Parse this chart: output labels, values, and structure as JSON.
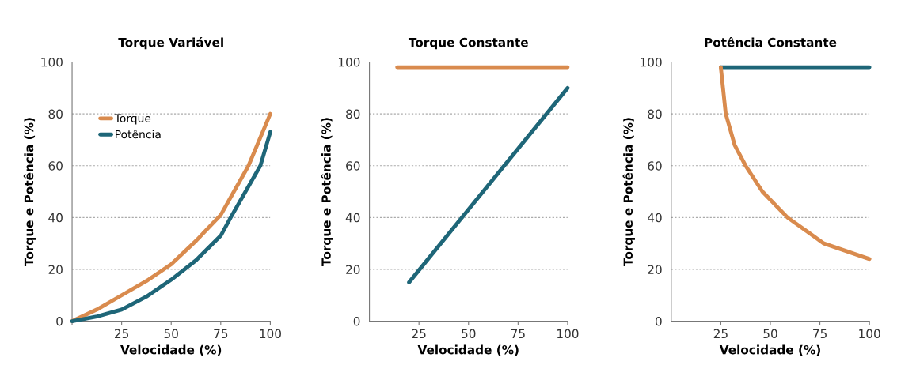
{
  "chart_data": [
    {
      "type": "line",
      "title": "Torque Variável",
      "xlabel": "Velocidade (%)",
      "ylabel": "Torque e Potência (%)",
      "xlim": [
        0,
        100
      ],
      "ylim": [
        0,
        100
      ],
      "xticks": [
        {
          "value": 0,
          "label": null
        },
        25,
        50,
        75,
        100
      ],
      "yticks": [
        0,
        20,
        40,
        60,
        80,
        100
      ],
      "grid": "y",
      "legend": "top left",
      "series": [
        {
          "name": "Torque",
          "color": "#d98b4e",
          "x": [
            0,
            12.5,
            25,
            37.5,
            50,
            62.5,
            75,
            89,
            100
          ],
          "values": [
            0,
            4.5,
            10,
            15.5,
            22,
            31,
            41,
            60,
            80
          ]
        },
        {
          "name": "Potência",
          "color": "#1e6678",
          "x": [
            0,
            12.5,
            25,
            37.5,
            50,
            62.5,
            75,
            80,
            87.5,
            95,
            100
          ],
          "values": [
            0,
            1.8,
            4.5,
            9.5,
            16,
            23.5,
            33,
            40,
            50,
            60,
            73
          ]
        }
      ]
    },
    {
      "type": "line",
      "title": "Torque Constante",
      "xlabel": "Velocidade (%)",
      "ylabel": "Torque e Potência (%)",
      "xlim": [
        0,
        100
      ],
      "ylim": [
        0,
        100
      ],
      "xticks": [
        25,
        50,
        75,
        100
      ],
      "yticks": [
        0,
        20,
        40,
        60,
        80,
        100
      ],
      "grid": "y",
      "series": [
        {
          "color": "#d98b4e",
          "x": [
            14,
            100
          ],
          "values": [
            98,
            98
          ]
        },
        {
          "color": "#1e6678",
          "x": [
            20,
            100
          ],
          "values": [
            15,
            90
          ]
        }
      ]
    },
    {
      "type": "line",
      "title": "Potência Constante",
      "xlabel": "Velocidade (%)",
      "ylabel": "Torque e Potência (%)",
      "xlim": [
        0,
        100
      ],
      "ylim": [
        0,
        100
      ],
      "xticks": [
        25,
        50,
        75,
        100
      ],
      "yticks": [
        0,
        20,
        40,
        60,
        80,
        100
      ],
      "grid": "y",
      "series": [
        {
          "color": "#1e6678",
          "x": [
            25,
            100
          ],
          "values": [
            98,
            98
          ]
        },
        {
          "color": "#d98b4e",
          "x": [
            25,
            27.5,
            32,
            37.5,
            46,
            58.7,
            77,
            100
          ],
          "values": [
            98,
            80,
            68,
            60,
            50,
            40,
            30,
            24
          ]
        }
      ]
    }
  ]
}
